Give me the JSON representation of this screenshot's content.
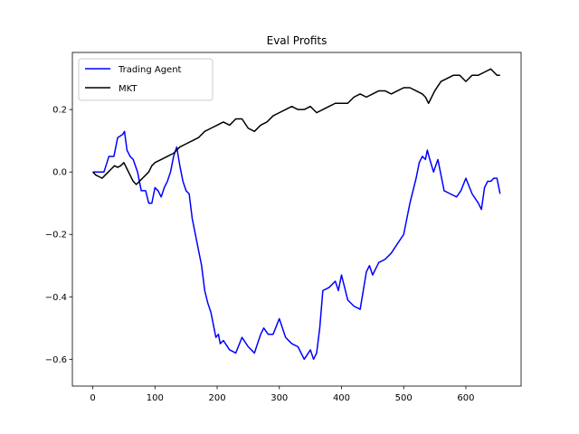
{
  "chart_data": {
    "type": "line",
    "title": "Eval Profits",
    "xlabel": "",
    "ylabel": "",
    "xlim": [
      -32.8,
      688.8
    ],
    "ylim": [
      -0.686,
      0.383
    ],
    "grid": false,
    "legend_position": "top-left",
    "x_ticks": [
      0,
      100,
      200,
      300,
      400,
      500,
      600
    ],
    "x_tick_labels": [
      "0",
      "100",
      "200",
      "300",
      "400",
      "500",
      "600"
    ],
    "y_ticks": [
      -0.6,
      -0.4,
      -0.2,
      0.0,
      0.2
    ],
    "y_tick_labels": [
      "−0.6",
      "−0.4",
      "−0.2",
      "0.0",
      "0.2"
    ],
    "series": [
      {
        "name": "Trading Agent",
        "color": "#0000ff",
        "x": [
          0,
          10,
          18,
          26,
          34,
          40,
          48,
          51,
          55,
          60,
          65,
          72,
          78,
          85,
          90,
          95,
          100,
          105,
          110,
          115,
          120,
          125,
          130,
          135,
          140,
          145,
          150,
          155,
          160,
          165,
          170,
          175,
          180,
          185,
          190,
          195,
          198,
          202,
          205,
          210,
          220,
          230,
          240,
          250,
          260,
          270,
          275,
          282,
          290,
          300,
          310,
          320,
          330,
          340,
          350,
          355,
          360,
          365,
          370,
          380,
          390,
          395,
          400,
          405,
          410,
          420,
          430,
          440,
          445,
          450,
          455,
          460,
          470,
          480,
          490,
          500,
          505,
          510,
          520,
          525,
          530,
          535,
          538,
          542,
          548,
          555,
          565,
          575,
          585,
          592,
          600,
          610,
          620,
          625,
          630,
          635,
          640,
          645,
          650,
          655
        ],
        "y": [
          0.0,
          0.0,
          0.0,
          0.05,
          0.05,
          0.11,
          0.12,
          0.13,
          0.07,
          0.05,
          0.04,
          0.0,
          -0.06,
          -0.06,
          -0.1,
          -0.1,
          -0.05,
          -0.06,
          -0.08,
          -0.05,
          -0.03,
          0.0,
          0.05,
          0.08,
          0.02,
          -0.03,
          -0.06,
          -0.07,
          -0.15,
          -0.2,
          -0.25,
          -0.3,
          -0.38,
          -0.42,
          -0.45,
          -0.5,
          -0.53,
          -0.52,
          -0.55,
          -0.54,
          -0.57,
          -0.58,
          -0.53,
          -0.56,
          -0.58,
          -0.52,
          -0.5,
          -0.52,
          -0.52,
          -0.47,
          -0.53,
          -0.55,
          -0.56,
          -0.6,
          -0.57,
          -0.6,
          -0.58,
          -0.5,
          -0.38,
          -0.37,
          -0.35,
          -0.38,
          -0.33,
          -0.37,
          -0.41,
          -0.43,
          -0.44,
          -0.32,
          -0.3,
          -0.33,
          -0.31,
          -0.29,
          -0.28,
          -0.26,
          -0.23,
          -0.2,
          -0.15,
          -0.1,
          -0.02,
          0.03,
          0.05,
          0.04,
          0.07,
          0.04,
          0.0,
          0.04,
          -0.06,
          -0.07,
          -0.08,
          -0.06,
          -0.02,
          -0.07,
          -0.1,
          -0.12,
          -0.05,
          -0.03,
          -0.03,
          -0.02,
          -0.02,
          -0.07
        ]
      },
      {
        "name": "MKT",
        "color": "#000000",
        "x": [
          0,
          5,
          10,
          15,
          20,
          25,
          30,
          35,
          40,
          45,
          50,
          55,
          60,
          65,
          70,
          75,
          80,
          85,
          90,
          95,
          100,
          110,
          120,
          130,
          140,
          150,
          160,
          170,
          180,
          190,
          200,
          210,
          220,
          230,
          240,
          250,
          260,
          270,
          280,
          290,
          300,
          310,
          320,
          330,
          340,
          350,
          360,
          370,
          380,
          390,
          400,
          410,
          420,
          430,
          440,
          450,
          460,
          470,
          480,
          490,
          500,
          510,
          520,
          530,
          535,
          540,
          550,
          560,
          570,
          580,
          590,
          600,
          610,
          620,
          630,
          640,
          645,
          650,
          655
        ],
        "y": [
          0.0,
          -0.01,
          -0.015,
          -0.02,
          -0.01,
          0.0,
          0.01,
          0.02,
          0.015,
          0.02,
          0.03,
          0.01,
          -0.01,
          -0.03,
          -0.04,
          -0.03,
          -0.02,
          -0.01,
          0.0,
          0.02,
          0.03,
          0.04,
          0.05,
          0.06,
          0.08,
          0.09,
          0.1,
          0.11,
          0.13,
          0.14,
          0.15,
          0.16,
          0.15,
          0.17,
          0.17,
          0.14,
          0.13,
          0.15,
          0.16,
          0.18,
          0.19,
          0.2,
          0.21,
          0.2,
          0.2,
          0.21,
          0.19,
          0.2,
          0.21,
          0.22,
          0.22,
          0.22,
          0.24,
          0.25,
          0.24,
          0.25,
          0.26,
          0.26,
          0.25,
          0.26,
          0.27,
          0.27,
          0.26,
          0.25,
          0.24,
          0.22,
          0.26,
          0.29,
          0.3,
          0.31,
          0.31,
          0.29,
          0.31,
          0.31,
          0.32,
          0.33,
          0.32,
          0.31,
          0.31
        ]
      }
    ]
  }
}
